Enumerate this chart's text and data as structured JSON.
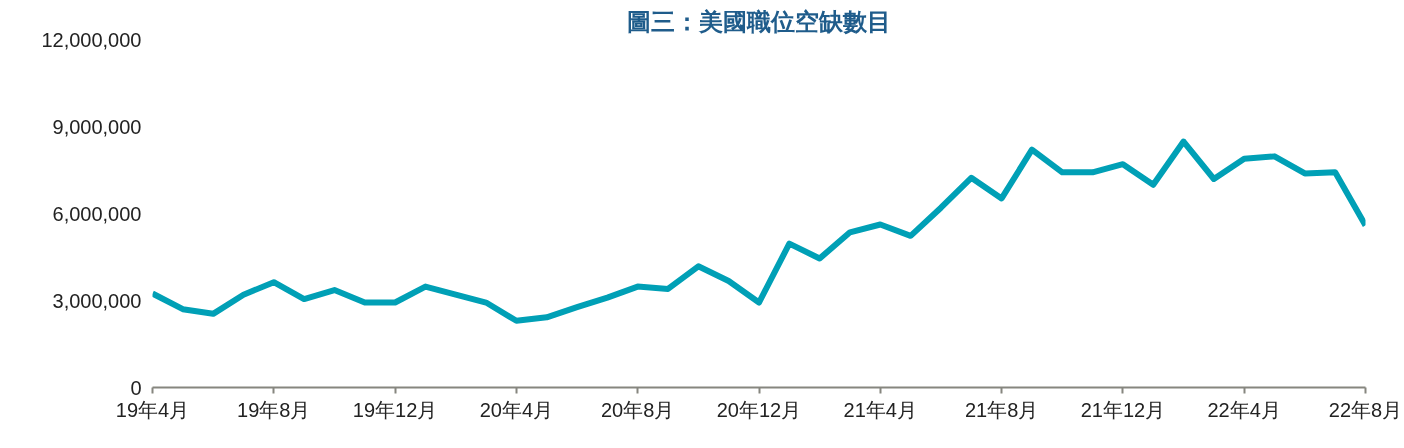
{
  "chart_data": {
    "type": "line",
    "title": "圖三：美國職位空缺數目",
    "categories": [
      "19年4月",
      null,
      null,
      null,
      "19年8月",
      null,
      null,
      null,
      "19年12月",
      null,
      null,
      null,
      "20年4月",
      null,
      null,
      null,
      "20年8月",
      null,
      null,
      null,
      "20年12月",
      null,
      null,
      null,
      "21年4月",
      null,
      null,
      null,
      "21年8月",
      null,
      null,
      null,
      "21年12月",
      null,
      null,
      null,
      "22年4月",
      null,
      null,
      null,
      "22年8月"
    ],
    "series": [
      {
        "color": "#00a0b6",
        "values": [
          3240000,
          2700000,
          2540000,
          3200000,
          3630000,
          3050000,
          3360000,
          2930000,
          2930000,
          3480000,
          3200000,
          2930000,
          2300000,
          2420000,
          2770000,
          3100000,
          3480000,
          3400000,
          4180000,
          3670000,
          2930000,
          4960000,
          4450000,
          5350000,
          5620000,
          5230000,
          6200000,
          7230000,
          6520000,
          8200000,
          7420000,
          7420000,
          7700000,
          6990000,
          8480000,
          7190000,
          7890000,
          7970000,
          7380000,
          7420000,
          5590000
        ]
      }
    ],
    "ylim": [
      0,
      12000000
    ],
    "yticks": [
      {
        "value": 0,
        "label": "0"
      },
      {
        "value": 3000000,
        "label": "3,000,000"
      },
      {
        "value": 6000000,
        "label": "6,000,000"
      },
      {
        "value": 9000000,
        "label": "9,000,000"
      },
      {
        "value": 12000000,
        "label": "12,000,000"
      }
    ],
    "grid": false,
    "marker": "none",
    "line_style": "solid"
  }
}
